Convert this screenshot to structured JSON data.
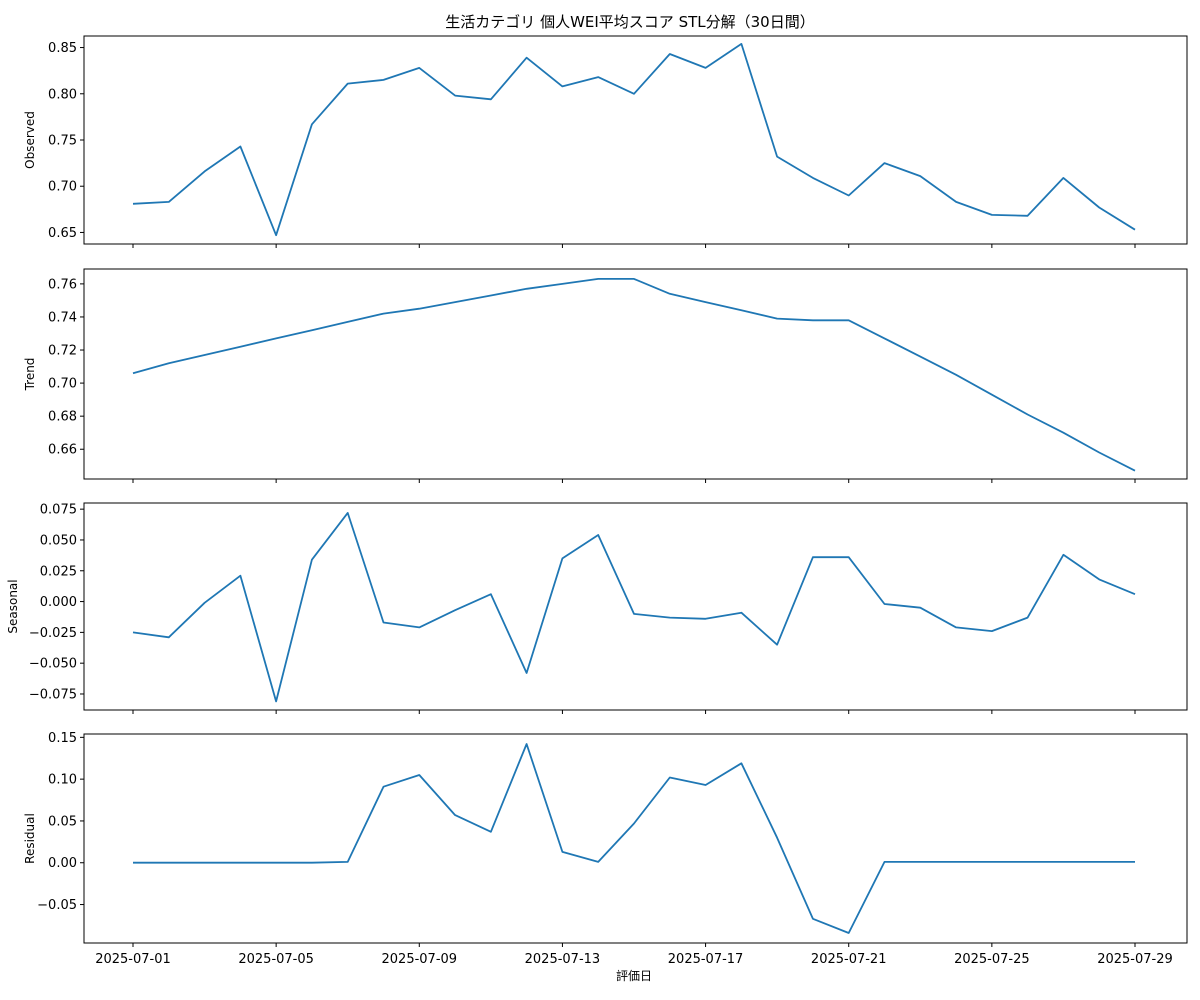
{
  "figure": {
    "title": "生活カテゴリ 個人WEI平均スコア STL分解（30日間）",
    "xlabel": "評価日"
  },
  "chart_data": {
    "type": "line",
    "title": "生活カテゴリ 個人WEI平均スコア STL分解（30日間）",
    "xlabel": "評価日",
    "x": [
      "2025-07-01",
      "2025-07-02",
      "2025-07-03",
      "2025-07-04",
      "2025-07-05",
      "2025-07-06",
      "2025-07-07",
      "2025-07-08",
      "2025-07-09",
      "2025-07-10",
      "2025-07-11",
      "2025-07-12",
      "2025-07-13",
      "2025-07-14",
      "2025-07-15",
      "2025-07-16",
      "2025-07-17",
      "2025-07-18",
      "2025-07-19",
      "2025-07-20",
      "2025-07-21",
      "2025-07-22",
      "2025-07-23",
      "2025-07-24",
      "2025-07-25",
      "2025-07-26",
      "2025-07-27",
      "2025-07-28",
      "2025-07-29"
    ],
    "xticks": [
      "2025-07-01",
      "2025-07-05",
      "2025-07-09",
      "2025-07-13",
      "2025-07-17",
      "2025-07-21",
      "2025-07-25",
      "2025-07-29"
    ],
    "grid": false,
    "panels": [
      {
        "ylabel": "Observed",
        "ylim": [
          0.6375,
          0.8625
        ],
        "yticks": [
          "0.65",
          "0.70",
          "0.75",
          "0.80",
          "0.85"
        ],
        "values": [
          0.681,
          0.683,
          0.716,
          0.743,
          0.647,
          0.767,
          0.811,
          0.815,
          0.828,
          0.798,
          0.794,
          0.839,
          0.808,
          0.818,
          0.8,
          0.843,
          0.828,
          0.854,
          0.732,
          0.709,
          0.69,
          0.725,
          0.711,
          0.683,
          0.669,
          0.668,
          0.709,
          0.677,
          0.653
        ]
      },
      {
        "ylabel": "Trend",
        "ylim": [
          0.642,
          0.769
        ],
        "yticks": [
          "0.66",
          "0.68",
          "0.70",
          "0.72",
          "0.74",
          "0.76"
        ],
        "values": [
          0.706,
          0.712,
          0.717,
          0.722,
          0.727,
          0.732,
          0.737,
          0.742,
          0.745,
          0.749,
          0.753,
          0.757,
          0.76,
          0.763,
          0.763,
          0.754,
          0.749,
          0.744,
          0.739,
          0.738,
          0.738,
          0.727,
          0.716,
          0.705,
          0.693,
          0.681,
          0.67,
          0.658,
          0.647
        ]
      },
      {
        "ylabel": "Seasonal",
        "ylim": [
          -0.088,
          0.08
        ],
        "yticks": [
          "0.075",
          "0.050",
          "0.025",
          "0.000",
          "−0.025",
          "−0.050",
          "−0.075"
        ],
        "values": [
          -0.025,
          -0.029,
          -0.001,
          0.021,
          -0.081,
          0.034,
          0.072,
          -0.017,
          -0.021,
          -0.007,
          0.006,
          -0.058,
          0.035,
          0.054,
          -0.01,
          -0.013,
          -0.014,
          -0.009,
          -0.035,
          0.036,
          0.036,
          -0.002,
          -0.005,
          -0.021,
          -0.024,
          -0.013,
          0.038,
          0.018,
          0.006
        ]
      },
      {
        "ylabel": "Residual",
        "ylim": [
          -0.096,
          0.154
        ],
        "yticks": [
          "0.15",
          "0.10",
          "0.05",
          "0.00",
          "−0.05"
        ],
        "values": [
          0.0,
          0.0,
          0.0,
          0.0,
          0.0,
          0.0,
          0.001,
          0.091,
          0.105,
          0.057,
          0.037,
          0.142,
          0.013,
          0.001,
          0.047,
          0.102,
          0.093,
          0.119,
          0.03,
          -0.067,
          -0.084,
          0.001,
          0.001,
          0.001,
          0.001,
          0.001,
          0.001,
          0.001,
          0.001
        ]
      }
    ]
  }
}
